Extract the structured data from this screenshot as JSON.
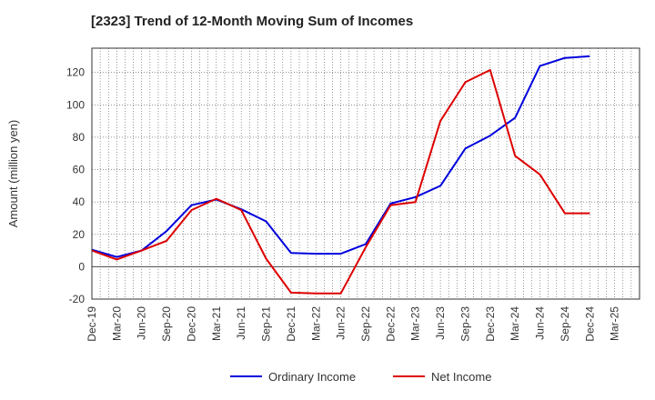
{
  "chart_data": {
    "type": "line",
    "title": "[2323]  Trend of 12-Month Moving Sum of Incomes",
    "xlabel": "",
    "ylabel": "Amount (million yen)",
    "ylim": [
      -20,
      135
    ],
    "yticks": [
      -20,
      0,
      20,
      40,
      60,
      80,
      100,
      120
    ],
    "grid": true,
    "legend_position": "bottom",
    "categories": [
      "Dec-19",
      "Mar-20",
      "Jun-20",
      "Sep-20",
      "Dec-20",
      "Mar-21",
      "Jun-21",
      "Sep-21",
      "Dec-21",
      "Mar-22",
      "Jun-22",
      "Sep-22",
      "Dec-22",
      "Mar-23",
      "Jun-23",
      "Sep-23",
      "Dec-23",
      "Mar-24",
      "Jun-24",
      "Sep-24",
      "Dec-24",
      "Mar-25"
    ],
    "series": [
      {
        "name": "Ordinary Income",
        "color": "#0000dd",
        "values": [
          10.5,
          6,
          10,
          22,
          38,
          41.5,
          35.5,
          28,
          8.5,
          8,
          8,
          14,
          39,
          43,
          50,
          73,
          81,
          92,
          124,
          129,
          130,
          null
        ]
      },
      {
        "name": "Net Income",
        "color": "#dd0000",
        "values": [
          10,
          4.5,
          10,
          16,
          35,
          42,
          35,
          5,
          -16,
          -16.5,
          -16.5,
          12,
          38,
          40,
          90,
          114,
          121.5,
          68.5,
          57,
          33,
          33,
          null
        ]
      }
    ]
  }
}
